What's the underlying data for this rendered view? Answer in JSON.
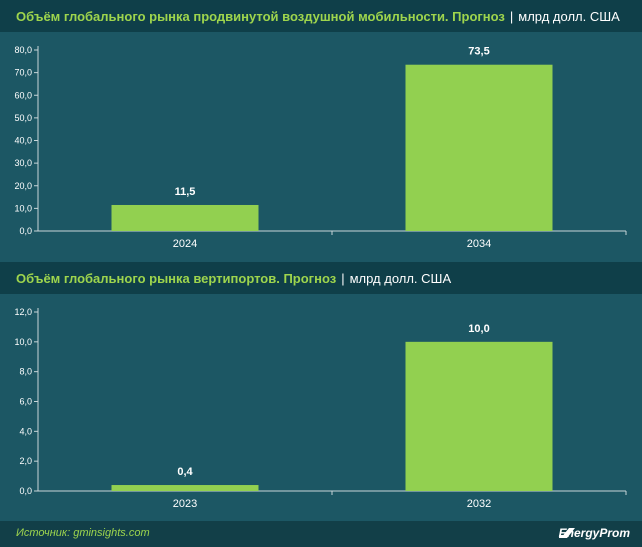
{
  "chart_data": [
    {
      "type": "bar",
      "title": "Объём глобального рынка продвинутой воздушной мобильности. Прогноз",
      "unit": "млрд долл. США",
      "categories": [
        "2024",
        "2034"
      ],
      "values": [
        11.5,
        73.5
      ],
      "value_labels": [
        "11,5",
        "73,5"
      ],
      "ylim": [
        0,
        80
      ],
      "yticks": [
        "0,0",
        "10,0",
        "20,0",
        "30,0",
        "40,0",
        "50,0",
        "60,0",
        "70,0",
        "80,0"
      ],
      "bar_color": "#92d050",
      "grid": false
    },
    {
      "type": "bar",
      "title": "Объём глобального рынка вертипортов. Прогноз",
      "unit": "млрд долл. США",
      "categories": [
        "2023",
        "2032"
      ],
      "values": [
        0.4,
        10.0
      ],
      "value_labels": [
        "0,4",
        "10,0"
      ],
      "ylim": [
        0,
        12
      ],
      "yticks": [
        "0,0",
        "2,0",
        "4,0",
        "6,0",
        "8,0",
        "10,0",
        "12,0"
      ],
      "bar_color": "#92d050",
      "grid": false
    }
  ],
  "footer": {
    "source": "Источник: gminsights.com",
    "logo_text": "EnergyProm"
  },
  "colors": {
    "background": "#1c5764",
    "title_bar": "#0f3f49",
    "title_accent": "#9ed54d",
    "bar": "#92d050"
  }
}
